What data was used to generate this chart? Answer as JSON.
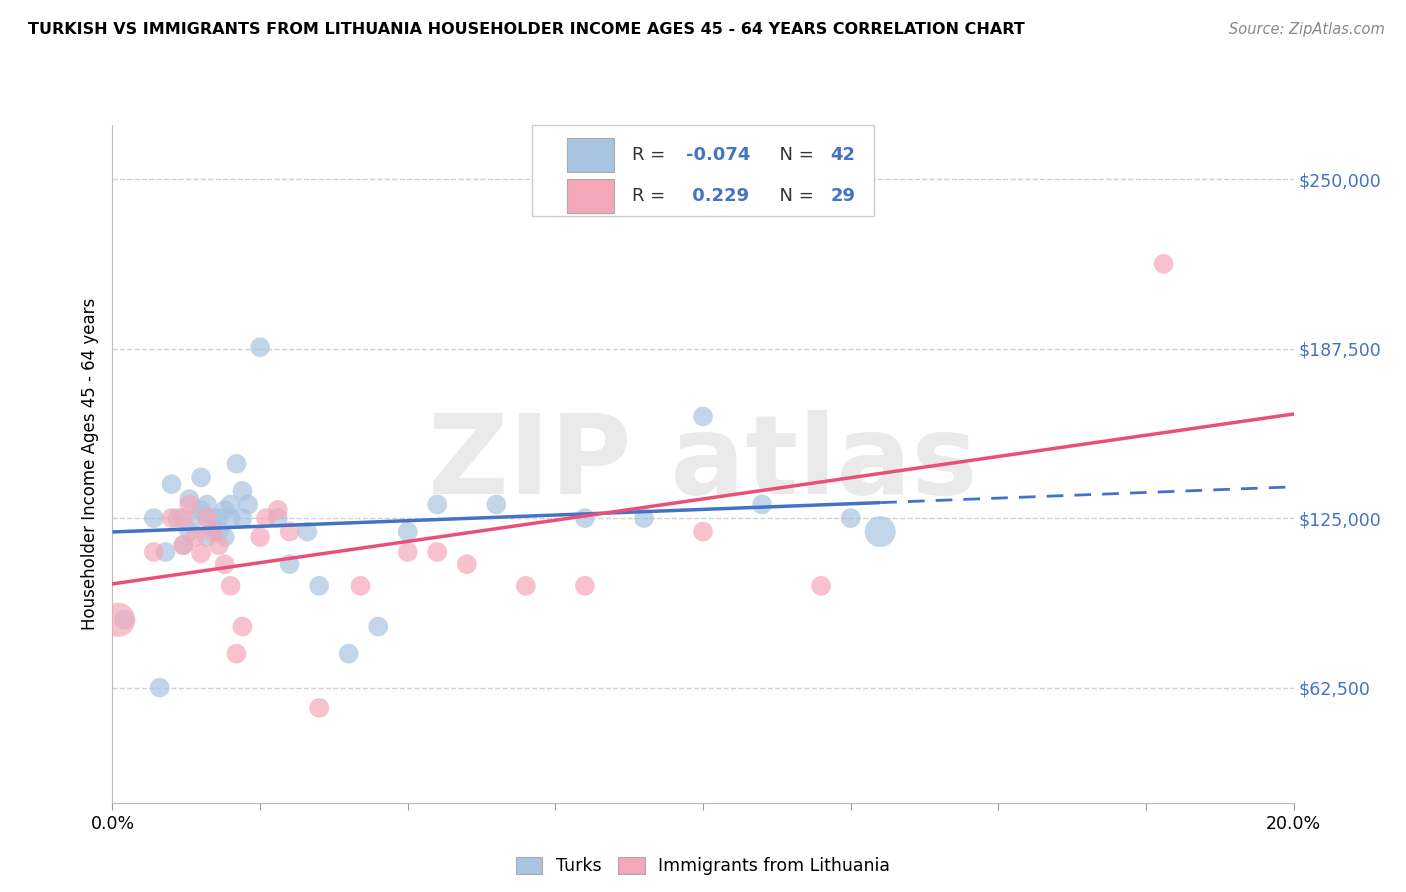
{
  "title": "TURKISH VS IMMIGRANTS FROM LITHUANIA HOUSEHOLDER INCOME AGES 45 - 64 YEARS CORRELATION CHART",
  "source": "Source: ZipAtlas.com",
  "ylabel": "Householder Income Ages 45 - 64 years",
  "xlim": [
    0.0,
    0.2
  ],
  "ylim": [
    20000,
    270000
  ],
  "yticks": [
    62500,
    125000,
    187500,
    250000
  ],
  "ytick_labels": [
    "$62,500",
    "$125,000",
    "$187,500",
    "$250,000"
  ],
  "xticks": [
    0.0,
    0.025,
    0.05,
    0.075,
    0.1,
    0.125,
    0.15,
    0.175,
    0.2
  ],
  "xtick_labels": [
    "0.0%",
    "",
    "",
    "",
    "",
    "",
    "",
    "",
    "20.0%"
  ],
  "legend_bottom": [
    "Turks",
    "Immigrants from Lithuania"
  ],
  "R_turks": -0.074,
  "N_turks": 42,
  "R_lithuania": 0.229,
  "N_lithuania": 29,
  "turks_color": "#a8c4e0",
  "lithuania_color": "#f4a7b9",
  "turks_line_color": "#4472c4",
  "lithuania_line_color": "#e8507a",
  "background_color": "#ffffff",
  "grid_color": "#d0d0d0",
  "turks_x": [
    0.002,
    0.007,
    0.008,
    0.009,
    0.01,
    0.011,
    0.012,
    0.013,
    0.013,
    0.014,
    0.015,
    0.015,
    0.016,
    0.016,
    0.017,
    0.017,
    0.018,
    0.018,
    0.019,
    0.019,
    0.02,
    0.02,
    0.021,
    0.022,
    0.022,
    0.023,
    0.025,
    0.028,
    0.03,
    0.033,
    0.035,
    0.04,
    0.045,
    0.05,
    0.055,
    0.065,
    0.08,
    0.09,
    0.1,
    0.11,
    0.125,
    0.13
  ],
  "turks_y": [
    87500,
    125000,
    62500,
    112500,
    137500,
    125000,
    115000,
    120000,
    132000,
    125000,
    128000,
    140000,
    118000,
    130000,
    122000,
    125000,
    125000,
    120000,
    128000,
    118000,
    130000,
    125000,
    145000,
    135000,
    125000,
    130000,
    188000,
    125000,
    108000,
    120000,
    100000,
    75000,
    85000,
    120000,
    130000,
    130000,
    125000,
    125000,
    162500,
    130000,
    125000,
    120000
  ],
  "turks_size": [
    200,
    200,
    200,
    200,
    200,
    200,
    200,
    200,
    200,
    200,
    200,
    200,
    200,
    200,
    200,
    200,
    200,
    200,
    200,
    200,
    200,
    200,
    200,
    200,
    200,
    200,
    200,
    200,
    200,
    200,
    200,
    200,
    200,
    200,
    200,
    200,
    200,
    200,
    200,
    200,
    200,
    500
  ],
  "lithuania_x": [
    0.001,
    0.007,
    0.01,
    0.012,
    0.012,
    0.013,
    0.014,
    0.015,
    0.016,
    0.017,
    0.018,
    0.019,
    0.02,
    0.021,
    0.022,
    0.025,
    0.026,
    0.028,
    0.03,
    0.035,
    0.042,
    0.05,
    0.055,
    0.06,
    0.07,
    0.08,
    0.1,
    0.12,
    0.178
  ],
  "lithuania_y": [
    87500,
    112500,
    125000,
    125000,
    115000,
    130000,
    118000,
    112000,
    125000,
    120000,
    115000,
    108000,
    100000,
    75000,
    85000,
    118000,
    125000,
    128000,
    120000,
    55000,
    100000,
    112500,
    112500,
    108000,
    100000,
    100000,
    120000,
    100000,
    218750
  ],
  "lithuania_size": [
    600,
    200,
    200,
    200,
    200,
    200,
    200,
    200,
    200,
    200,
    200,
    200,
    200,
    200,
    200,
    200,
    200,
    200,
    200,
    200,
    200,
    200,
    200,
    200,
    200,
    200,
    200,
    200,
    200
  ]
}
